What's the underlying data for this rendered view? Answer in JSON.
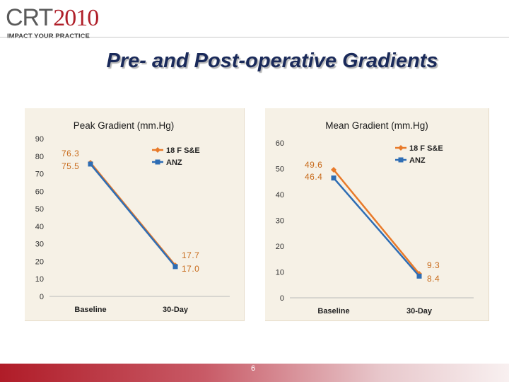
{
  "logo": {
    "crt": "CRT",
    "year": "2010",
    "tagline": "IMPACT YOUR PRACTICE"
  },
  "slide": {
    "title": "Pre- and Post-operative Gradients",
    "page_number": "6"
  },
  "colors": {
    "series_orange": "#e87a2a",
    "series_blue": "#2e6db4",
    "panel_bg": "#f6f1e6",
    "label_orange": "#c86a1a",
    "title": "#1a2a5a",
    "footer_red": "#b01c28"
  },
  "chart_data": [
    {
      "type": "line",
      "title": "Peak Gradient (mm.Hg)",
      "categories": [
        "Baseline",
        "30-Day"
      ],
      "ylim": [
        0,
        90
      ],
      "yticks": [
        "0",
        "10",
        "20",
        "30",
        "40",
        "50",
        "60",
        "70",
        "80",
        "90"
      ],
      "grid": false,
      "legend_position": "top-right",
      "series": [
        {
          "name": "18 F S&E",
          "values": [
            76.3,
            17.7
          ],
          "labels": [
            "76.3",
            "17.7"
          ]
        },
        {
          "name": "ANZ",
          "values": [
            75.5,
            17.0
          ],
          "labels": [
            "75.5",
            "17.0"
          ]
        }
      ]
    },
    {
      "type": "line",
      "title": "Mean Gradient (mm.Hg)",
      "categories": [
        "Baseline",
        "30-Day"
      ],
      "ylim": [
        0,
        60
      ],
      "yticks": [
        "0",
        "10",
        "20",
        "30",
        "40",
        "50",
        "60"
      ],
      "grid": false,
      "legend_position": "top-right",
      "series": [
        {
          "name": "18 F S&E",
          "values": [
            49.6,
            9.3
          ],
          "labels": [
            "49.6",
            "9.3"
          ]
        },
        {
          "name": "ANZ",
          "values": [
            46.4,
            8.4
          ],
          "labels": [
            "46.4",
            "8.4"
          ]
        }
      ]
    }
  ]
}
